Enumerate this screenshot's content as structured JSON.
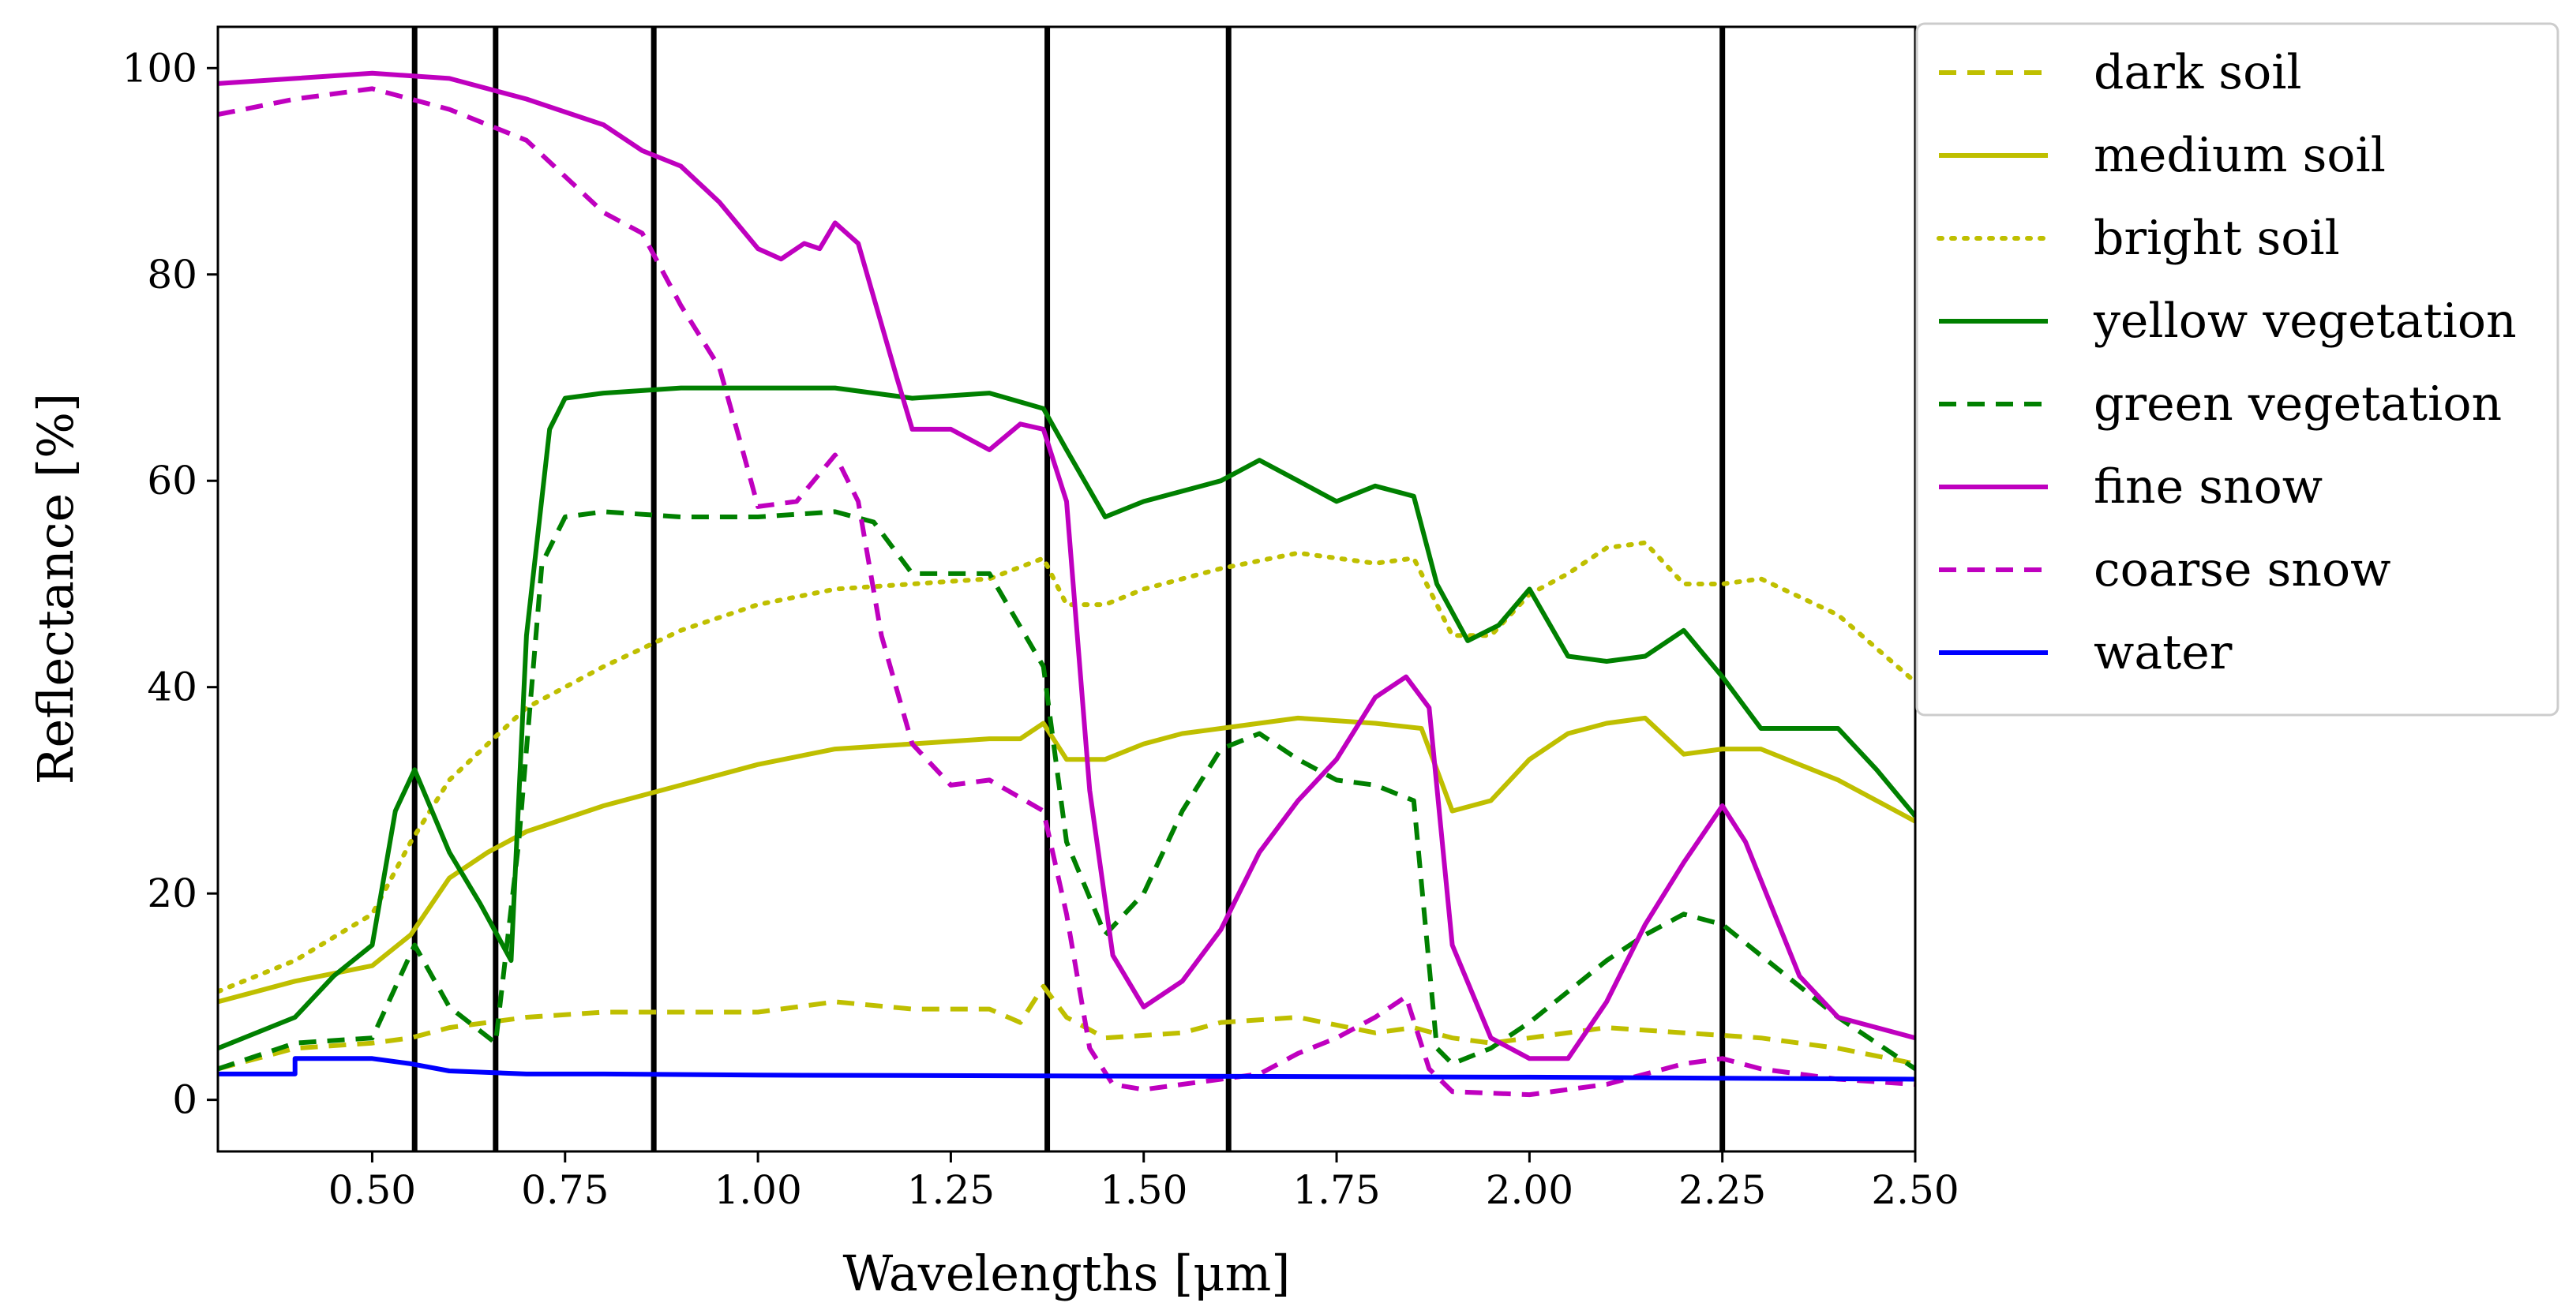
{
  "chart_data": {
    "type": "line",
    "title": "",
    "xlabel": "Wavelengths [μm]",
    "ylabel": "Reflectance [%]",
    "xlim": [
      0.3,
      2.5
    ],
    "ylim": [
      -5,
      104
    ],
    "xticks": [
      0.5,
      0.75,
      1.0,
      1.25,
      1.5,
      1.75,
      2.0,
      2.25,
      2.5
    ],
    "xtick_labels": [
      "0.50",
      "0.75",
      "1.00",
      "1.25",
      "1.50",
      "1.75",
      "2.00",
      "2.25",
      "2.50"
    ],
    "yticks": [
      0,
      20,
      40,
      60,
      80,
      100
    ],
    "ytick_labels": [
      "0",
      "20",
      "40",
      "60",
      "80",
      "100"
    ],
    "grid": false,
    "legend_position": "outside-top-right",
    "band_lines": [
      0.555,
      0.66,
      0.865,
      1.375,
      1.61,
      2.25
    ],
    "series": [
      {
        "name": "dark soil",
        "color": "#bfbf00",
        "dash": "dashed",
        "x": [
          0.3,
          0.4,
          0.5,
          0.55,
          0.6,
          0.7,
          0.8,
          0.9,
          1.0,
          1.1,
          1.2,
          1.3,
          1.34,
          1.37,
          1.4,
          1.45,
          1.55,
          1.6,
          1.7,
          1.8,
          1.85,
          1.9,
          1.95,
          2.0,
          2.1,
          2.2,
          2.3,
          2.4,
          2.5
        ],
        "y": [
          3,
          5,
          5.5,
          6,
          7,
          8,
          8.5,
          8.5,
          8.5,
          9.5,
          8.8,
          8.8,
          7.5,
          11,
          8,
          6,
          6.5,
          7.5,
          8,
          6.5,
          7,
          6,
          5.5,
          6,
          7,
          6.5,
          6,
          5,
          3.5
        ]
      },
      {
        "name": "medium soil",
        "color": "#bfbf00",
        "dash": "solid",
        "x": [
          0.3,
          0.4,
          0.5,
          0.55,
          0.6,
          0.65,
          0.7,
          0.8,
          0.9,
          1.0,
          1.1,
          1.2,
          1.3,
          1.34,
          1.37,
          1.4,
          1.45,
          1.5,
          1.55,
          1.6,
          1.7,
          1.8,
          1.86,
          1.9,
          1.95,
          2.0,
          2.05,
          2.1,
          2.15,
          2.2,
          2.25,
          2.3,
          2.4,
          2.5
        ],
        "y": [
          9.5,
          11.5,
          13,
          16,
          21.5,
          24,
          26,
          28.5,
          30.5,
          32.5,
          34,
          34.5,
          35,
          35,
          36.5,
          33,
          33,
          34.5,
          35.5,
          36,
          37,
          36.5,
          36,
          28,
          29,
          33,
          35.5,
          36.5,
          37,
          33.5,
          34,
          34,
          31,
          27
        ]
      },
      {
        "name": "bright soil",
        "color": "#bfbf00",
        "dash": "dotted",
        "x": [
          0.3,
          0.4,
          0.5,
          0.55,
          0.6,
          0.7,
          0.8,
          0.9,
          1.0,
          1.1,
          1.2,
          1.3,
          1.37,
          1.4,
          1.45,
          1.5,
          1.6,
          1.7,
          1.8,
          1.85,
          1.9,
          1.95,
          2.0,
          2.05,
          2.1,
          2.15,
          2.2,
          2.25,
          2.3,
          2.4,
          2.5
        ],
        "y": [
          10.5,
          13.5,
          18,
          25,
          31,
          38,
          42,
          45.5,
          48,
          49.5,
          50,
          50.5,
          52.5,
          48,
          48,
          49.5,
          51.5,
          53,
          52,
          52.5,
          45,
          45,
          49,
          51,
          53.5,
          54,
          50,
          50,
          50.5,
          47,
          40.5
        ]
      },
      {
        "name": "yellow vegetation",
        "color": "#008000",
        "dash": "solid",
        "x": [
          0.3,
          0.4,
          0.45,
          0.5,
          0.53,
          0.555,
          0.6,
          0.64,
          0.68,
          0.7,
          0.73,
          0.75,
          0.8,
          0.9,
          1.0,
          1.1,
          1.2,
          1.3,
          1.37,
          1.4,
          1.45,
          1.5,
          1.6,
          1.65,
          1.7,
          1.75,
          1.8,
          1.85,
          1.88,
          1.92,
          1.96,
          2.0,
          2.05,
          2.1,
          2.15,
          2.2,
          2.25,
          2.3,
          2.4,
          2.45,
          2.5
        ],
        "y": [
          5,
          8,
          12,
          15,
          28,
          32,
          24,
          19,
          13.5,
          45,
          65,
          68,
          68.5,
          69,
          69,
          69,
          68,
          68.5,
          67,
          63,
          56.5,
          58,
          60,
          62,
          60,
          58,
          59.5,
          58.5,
          50,
          44.5,
          46,
          49.5,
          43,
          42.5,
          43,
          45.5,
          41,
          36,
          36,
          32,
          27.5
        ]
      },
      {
        "name": "green vegetation",
        "color": "#008000",
        "dash": "dashed",
        "x": [
          0.3,
          0.4,
          0.5,
          0.555,
          0.6,
          0.66,
          0.69,
          0.72,
          0.75,
          0.8,
          0.9,
          1.0,
          1.1,
          1.15,
          1.2,
          1.3,
          1.37,
          1.4,
          1.45,
          1.5,
          1.55,
          1.6,
          1.65,
          1.7,
          1.75,
          1.8,
          1.85,
          1.88,
          1.9,
          1.95,
          2.0,
          2.1,
          2.15,
          2.2,
          2.25,
          2.3,
          2.4,
          2.5
        ],
        "y": [
          3,
          5.5,
          6,
          15,
          9,
          5.5,
          25,
          52,
          56.5,
          57,
          56.5,
          56.5,
          57,
          56,
          51,
          51,
          42,
          25,
          16,
          20,
          28,
          34,
          35.5,
          33,
          31,
          30.5,
          29,
          5,
          3.5,
          5,
          7.5,
          13.5,
          16,
          18,
          17,
          14,
          8,
          3
        ]
      },
      {
        "name": "fine snow",
        "color": "#bf00bf",
        "dash": "solid",
        "x": [
          0.3,
          0.4,
          0.5,
          0.6,
          0.7,
          0.8,
          0.85,
          0.9,
          0.95,
          1.0,
          1.03,
          1.06,
          1.08,
          1.1,
          1.13,
          1.18,
          1.2,
          1.25,
          1.3,
          1.34,
          1.37,
          1.4,
          1.43,
          1.46,
          1.5,
          1.55,
          1.6,
          1.65,
          1.7,
          1.75,
          1.8,
          1.84,
          1.87,
          1.9,
          1.95,
          2.0,
          2.05,
          2.1,
          2.15,
          2.2,
          2.25,
          2.28,
          2.35,
          2.4,
          2.5
        ],
        "y": [
          98.5,
          99,
          99.5,
          99,
          97,
          94.5,
          92,
          90.5,
          87,
          82.5,
          81.5,
          83,
          82.5,
          85,
          83,
          70,
          65,
          65,
          63,
          65.5,
          65,
          58,
          30,
          14,
          9,
          11.5,
          16.5,
          24,
          29,
          33,
          39,
          41,
          38,
          15,
          6,
          4,
          4,
          9.5,
          17,
          23,
          28.5,
          25,
          12,
          8,
          6
        ]
      },
      {
        "name": "coarse snow",
        "color": "#bf00bf",
        "dash": "dashed",
        "x": [
          0.3,
          0.4,
          0.5,
          0.6,
          0.7,
          0.8,
          0.85,
          0.9,
          0.95,
          0.98,
          1.0,
          1.05,
          1.1,
          1.13,
          1.16,
          1.2,
          1.25,
          1.3,
          1.37,
          1.4,
          1.43,
          1.46,
          1.5,
          1.55,
          1.6,
          1.65,
          1.7,
          1.75,
          1.8,
          1.84,
          1.87,
          1.9,
          2.0,
          2.1,
          2.2,
          2.25,
          2.3,
          2.4,
          2.5
        ],
        "y": [
          95.5,
          97,
          98,
          96,
          93,
          86,
          84,
          77,
          71,
          63,
          57.5,
          58,
          62.5,
          58,
          45,
          34.5,
          30.5,
          31,
          28,
          18,
          5,
          1.5,
          1,
          1.5,
          2,
          2.5,
          4.5,
          6,
          8,
          10,
          3,
          0.8,
          0.5,
          1.5,
          3.5,
          4,
          3,
          2,
          1.5
        ]
      },
      {
        "name": "water",
        "color": "#0000ff",
        "dash": "solid",
        "x": [
          0.3,
          0.4,
          0.4,
          0.5,
          0.55,
          0.6,
          0.7,
          0.8,
          1.0,
          1.5,
          2.0,
          2.5
        ],
        "y": [
          2.5,
          2.5,
          4,
          4,
          3.5,
          2.8,
          2.5,
          2.5,
          2.4,
          2.3,
          2.2,
          2
        ]
      }
    ]
  }
}
